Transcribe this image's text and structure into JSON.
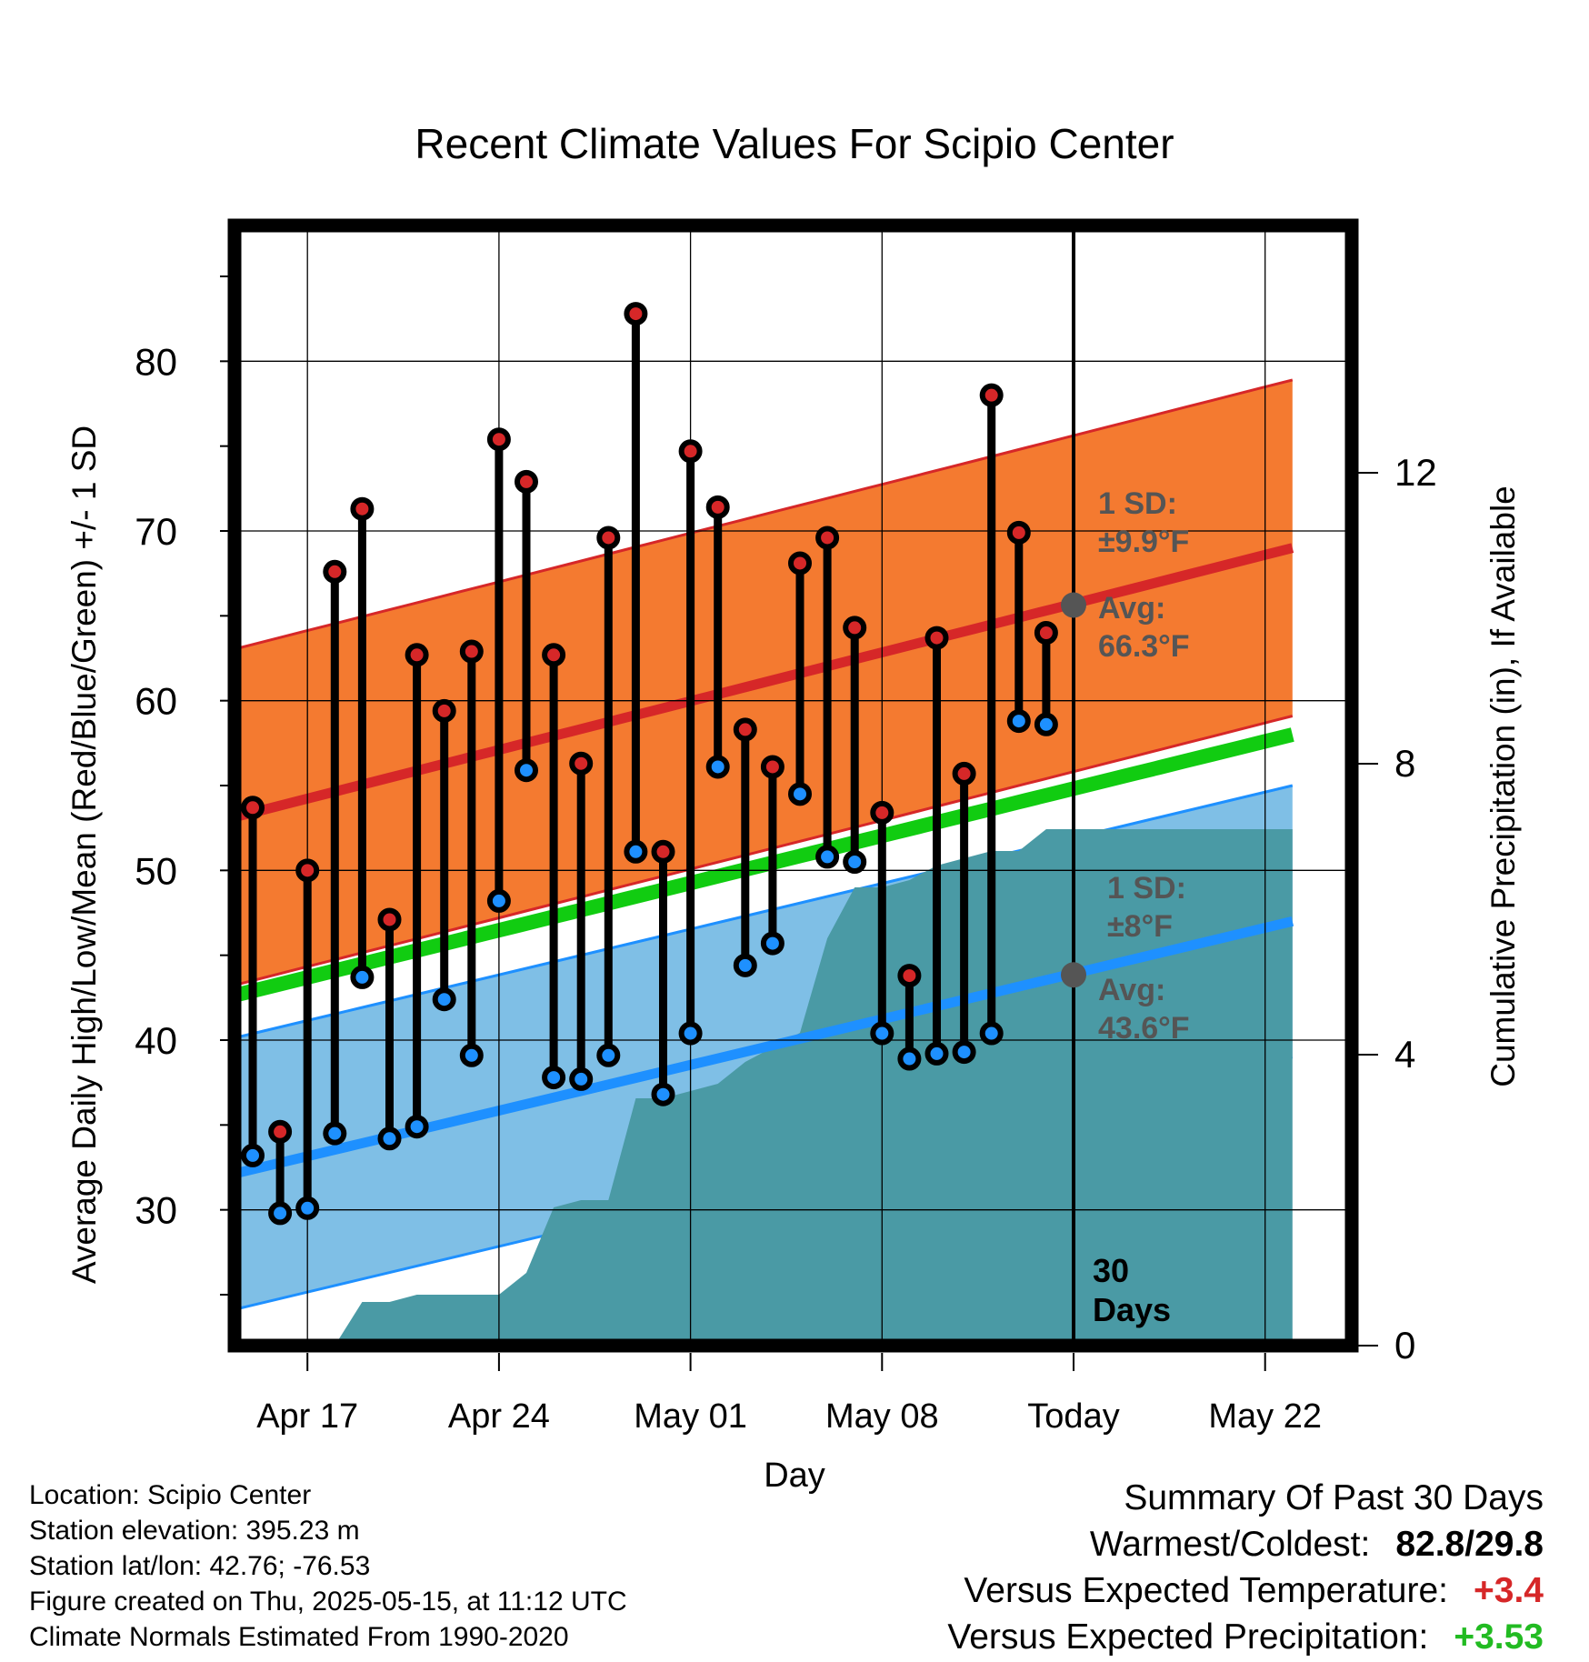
{
  "chart_data": {
    "type": "line",
    "title": "Recent Climate Values For Scipio Center",
    "xlabel": "Day",
    "ylabel": "Average Daily High/Low/Mean (Red/Blue/Green) +/- 1 SD",
    "y2label": "Cumulative Precipitation (in), If Available",
    "x_tick_labels": [
      "Apr 17",
      "Apr 24",
      "May 01",
      "May 08",
      "Today",
      "May 22"
    ],
    "x_range": [
      "Apr 14",
      "May 23"
    ],
    "today": "May 15",
    "ylim": [
      22,
      88
    ],
    "y_ticks": [
      30,
      40,
      50,
      60,
      70,
      80
    ],
    "y2lim": [
      0,
      15.4
    ],
    "y2_ticks": [
      0,
      4,
      8,
      12
    ],
    "grid": true,
    "days": [
      "Apr 15",
      "Apr 16",
      "Apr 17",
      "Apr 18",
      "Apr 19",
      "Apr 20",
      "Apr 21",
      "Apr 22",
      "Apr 23",
      "Apr 24",
      "Apr 25",
      "Apr 26",
      "Apr 27",
      "Apr 28",
      "Apr 29",
      "Apr 30",
      "May 01",
      "May 02",
      "May 03",
      "May 04",
      "May 05",
      "May 06",
      "May 07",
      "May 08",
      "May 09",
      "May 10",
      "May 11",
      "May 12",
      "May 13",
      "May 14"
    ],
    "series": [
      {
        "name": "High",
        "color": "#d62728",
        "values": [
          53.7,
          34.6,
          50.0,
          67.6,
          71.3,
          47.1,
          62.7,
          59.4,
          62.9,
          75.4,
          72.9,
          62.7,
          56.3,
          69.6,
          82.8,
          51.1,
          74.7,
          71.4,
          58.3,
          56.1,
          68.1,
          69.6,
          64.3,
          53.4,
          43.8,
          63.7,
          55.7,
          78.0,
          69.9,
          64.0
        ]
      },
      {
        "name": "Low",
        "color": "#1e90ff",
        "values": [
          33.2,
          29.8,
          30.1,
          34.5,
          43.7,
          34.2,
          34.9,
          42.4,
          39.1,
          48.2,
          55.9,
          37.8,
          37.7,
          39.1,
          51.1,
          36.8,
          40.4,
          56.1,
          44.4,
          45.7,
          54.5,
          50.8,
          50.5,
          40.4,
          38.9,
          39.2,
          39.3,
          40.4,
          58.8,
          58.6
        ]
      }
    ],
    "normals": {
      "high_avg_start": 53.0,
      "high_avg_end": 69.0,
      "high_sd": 9.9,
      "low_avg_start": 32.0,
      "low_avg_end": 47.0,
      "low_sd": 8.0,
      "mean_start": 42.5,
      "mean_end": 58.0
    },
    "precip_cumulative": [
      [
        "Apr 14",
        0
      ],
      [
        "Apr 18",
        0
      ],
      [
        "Apr 19",
        0.6
      ],
      [
        "Apr 20",
        0.6
      ],
      [
        "Apr 21",
        0.7
      ],
      [
        "Apr 24",
        0.7
      ],
      [
        "Apr 25",
        1.0
      ],
      [
        "Apr 26",
        1.9
      ],
      [
        "Apr 27",
        2.0
      ],
      [
        "Apr 28",
        2.0
      ],
      [
        "Apr 29",
        3.4
      ],
      [
        "Apr 30",
        3.4
      ],
      [
        "May 01",
        3.5
      ],
      [
        "May 02",
        3.6
      ],
      [
        "May 03",
        3.9
      ],
      [
        "May 04",
        4.1
      ],
      [
        "May 05",
        4.3
      ],
      [
        "May 06",
        5.6
      ],
      [
        "May 07",
        6.3
      ],
      [
        "May 08",
        6.3
      ],
      [
        "May 09",
        6.4
      ],
      [
        "May 10",
        6.6
      ],
      [
        "May 11",
        6.7
      ],
      [
        "May 12",
        6.8
      ],
      [
        "May 13",
        6.8
      ],
      [
        "May 14",
        7.1
      ],
      [
        "May 23",
        7.1
      ]
    ],
    "annotations": {
      "high_sd_label": "1 SD:",
      "high_sd_value": "±9.9°F",
      "high_avg_label": "Avg:",
      "high_avg_value": "66.3°F",
      "low_sd_label": "1 SD:",
      "low_sd_value": "±8°F",
      "low_avg_label": "Avg:",
      "low_avg_value": "43.6°F",
      "days_label_1": "30",
      "days_label_2": "Days"
    }
  },
  "footer_left": {
    "location": "Location: Scipio Center",
    "elevation": "Station elevation: 395.23 m",
    "latlon": "Station lat/lon: 42.76; -76.53",
    "created": "Figure created on Thu, 2025-05-15, at 11:12 UTC",
    "normals": "Climate Normals Estimated From 1990-2020"
  },
  "summary": {
    "heading": "Summary Of Past 30 Days",
    "warm_cold_label": "Warmest/Coldest:",
    "warm_cold_value": "82.8/29.8",
    "temp_label": "Versus Expected Temperature:",
    "temp_value": "+3.4",
    "temp_color": "#d62728",
    "precip_label": "Versus Expected Precipitation:",
    "precip_value": "+3.53",
    "precip_color": "#22bb22"
  },
  "colors": {
    "high_band": "#f47a30",
    "high_line": "#d62728",
    "low_band": "#7fbfe6",
    "low_line": "#1e90ff",
    "mean_line": "#11cc11",
    "precip_fill": "#4a9aa5",
    "annotation_text": "#555555"
  }
}
